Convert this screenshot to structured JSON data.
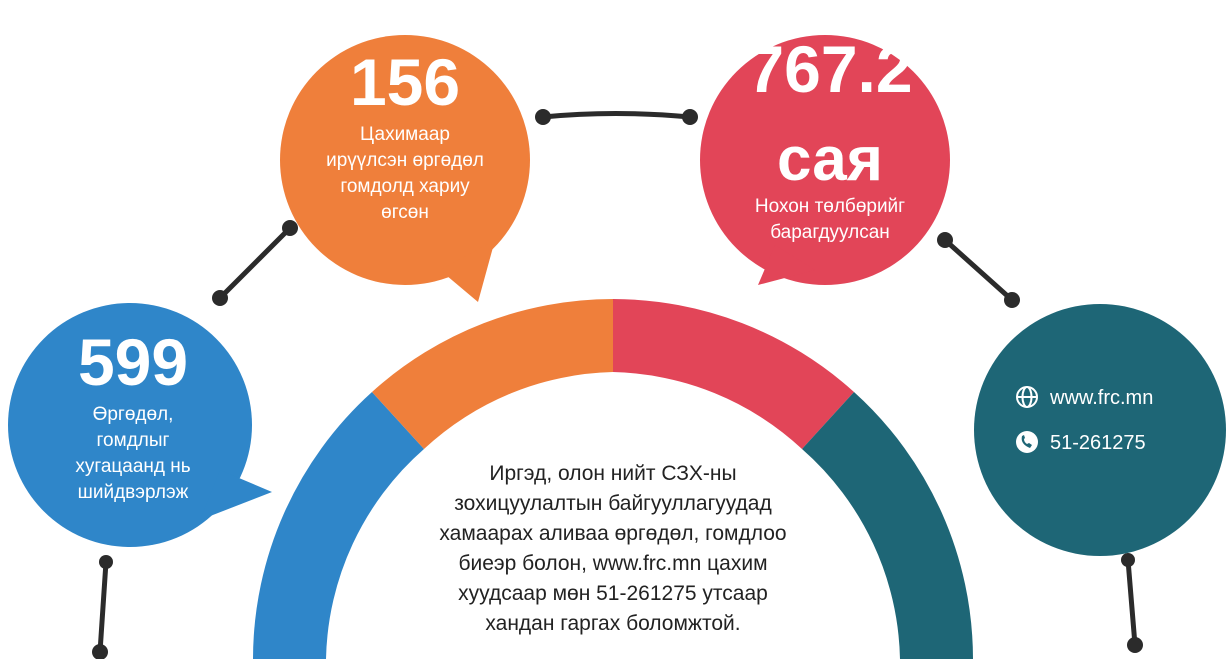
{
  "bubbles": [
    {
      "number": "599",
      "text": [
        "Өргөдөл,",
        "гомдлыг",
        "хугацаанд нь",
        "шийдвэрлэж"
      ]
    },
    {
      "number": "156",
      "text": [
        "Цахимаар",
        "ирүүлсэн өргөдөл",
        "гомдолд хариу",
        "өгсөн"
      ]
    },
    {
      "number": "767.2",
      "unit": "сая",
      "text": [
        "Нохон төлбөрийг",
        "барагдуулсан"
      ]
    }
  ],
  "center_text": [
    "Иргэд, олон нийт СЗХ-ны",
    "зохицуулалтын байгууллагуудад",
    "хамаарах аливаа өргөдөл, гомдлоо",
    "биеэр болон, www.frc.mn цахим",
    "хуудсаар мөн 51-261275 утсаар",
    "хандан гаргах боломжтой."
  ],
  "contact": {
    "website": "www.frc.mn",
    "phone": "51-261275"
  }
}
